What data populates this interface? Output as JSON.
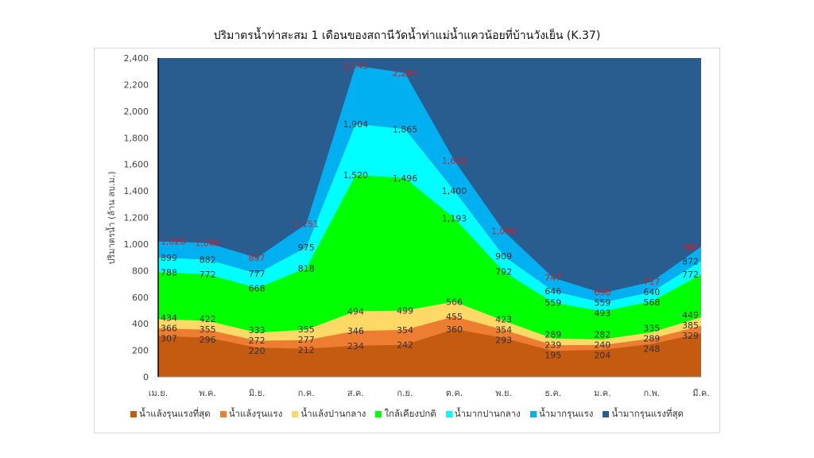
{
  "chart_data": {
    "type": "area",
    "title": "ปริมาตรน้ำท่าสะสม 1 เดือนของสถานีวัดน้ำท่าแม่น้ำแควน้อยที่บ้านวังเย็น (K.37)",
    "ylabel": "ปริมาตรน้ำ (ล้าน ลบ.ม.)",
    "xlabel": "",
    "ylim": [
      0,
      2400
    ],
    "yticks": [
      0,
      200,
      400,
      600,
      800,
      1000,
      1200,
      1400,
      1600,
      1800,
      2000,
      2200,
      2400
    ],
    "categories": [
      "เม.ย.",
      "พ.ค.",
      "มิ.ย.",
      "ก.ค.",
      "ส.ค.",
      "ก.ย.",
      "ต.ค.",
      "พ.ย.",
      "ธ.ค.",
      "ม.ค.",
      "ก.พ.",
      "มี.ค."
    ],
    "legend_position": "bottom",
    "series": [
      {
        "name": "น้ำแล้งรุนแรงที่สุด",
        "color": "#c55a11",
        "values": [
          307,
          296,
          220,
          212,
          234,
          242,
          360,
          293,
          195,
          204,
          248,
          329
        ]
      },
      {
        "name": "น้ำแล้งรุนแรง",
        "color": "#ed7d31",
        "values": [
          366,
          355,
          272,
          277,
          346,
          354,
          455,
          354,
          239,
          240,
          289,
          385
        ]
      },
      {
        "name": "น้ำแล้งปานกลาง",
        "color": "#ffd966",
        "values": [
          434,
          422,
          333,
          355,
          494,
          499,
          566,
          423,
          289,
          282,
          335,
          449
        ]
      },
      {
        "name": "ใกล้เคียงปกติ",
        "color": "#00ff00",
        "values": [
          788,
          772,
          668,
          818,
          1520,
          1496,
          1193,
          792,
          559,
          493,
          568,
          772
        ]
      },
      {
        "name": "น้ำมากปานกลาง",
        "color": "#00ffff",
        "values": [
          899,
          882,
          777,
          975,
          1904,
          1865,
          1400,
          909,
          646,
          559,
          640,
          872
        ]
      },
      {
        "name": "น้ำมากรุนแรง",
        "color": "#00b0f0",
        "values": [
          1020,
          1008,
          897,
          1151,
          2343,
          2287,
          1629,
          1098,
          747,
          630,
          717,
          980
        ]
      },
      {
        "name": "น้ำมากรุนแรงที่สุด",
        "color": "#2a5d8f",
        "values": [
          2400,
          2400,
          2400,
          2400,
          2400,
          2400,
          2400,
          2400,
          2400,
          2400,
          2400,
          2400
        ]
      }
    ],
    "note": "values are cumulative upper bounds of each band; top band fills to axis max"
  }
}
